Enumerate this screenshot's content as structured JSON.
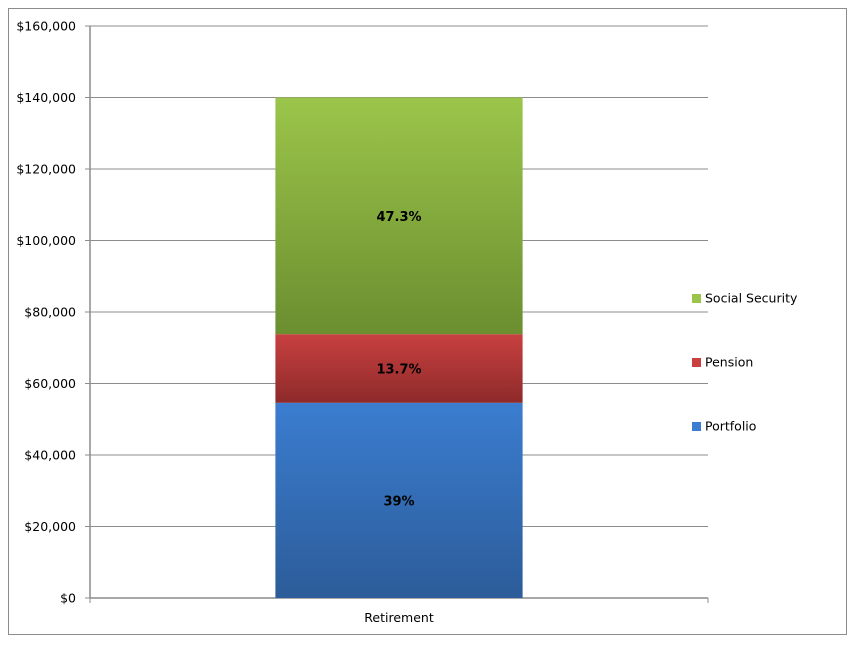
{
  "chart_data": {
    "type": "bar",
    "stacked": true,
    "categories": [
      "Retirement"
    ],
    "series": [
      {
        "name": "Portfolio",
        "values": [
          54600
        ],
        "label": "39%",
        "color": "#3b7dd0",
        "color_dark": "#2c5c99"
      },
      {
        "name": "Pension",
        "values": [
          19200
        ],
        "label": "13.7%",
        "color": "#c84040",
        "color_dark": "#8e2a2a"
      },
      {
        "name": "Social Security",
        "values": [
          66200
        ],
        "label": "47.3%",
        "color": "#9bc54a",
        "color_dark": "#6b8e30"
      }
    ],
    "ylim": [
      0,
      160000
    ],
    "yticks": [
      0,
      20000,
      40000,
      60000,
      80000,
      100000,
      120000,
      140000,
      160000
    ],
    "ytick_labels": [
      "$0",
      "$20,000",
      "$40,000",
      "$60,000",
      "$80,000",
      "$100,000",
      "$120,000",
      "$140,000",
      "$160,000"
    ],
    "grid": true,
    "legend_position": "right",
    "legend_order": [
      "Social Security",
      "Pension",
      "Portfolio"
    ]
  }
}
